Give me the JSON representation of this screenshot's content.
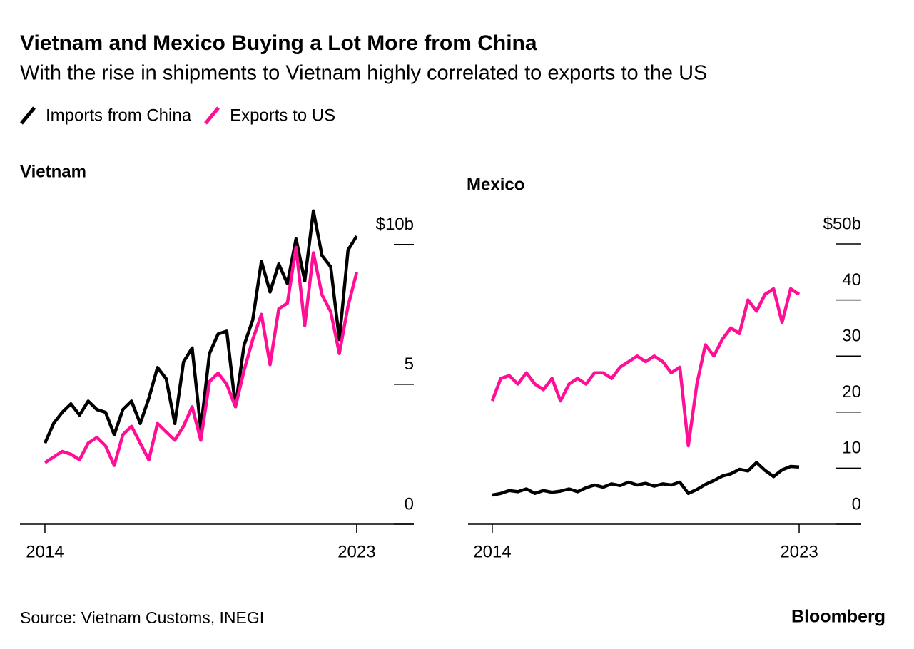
{
  "title": "Vietnam and Mexico Buying a Lot More from China",
  "subtitle": "With the rise in shipments to Vietnam highly correlated to exports to the US",
  "source": "Source: Vietnam Customs, INEGI",
  "brand": "Bloomberg",
  "chart_data": [
    {
      "type": "line",
      "title": "Vietnam",
      "x": [
        2014,
        2014.25,
        2014.5,
        2014.75,
        2015,
        2015.25,
        2015.5,
        2015.75,
        2016,
        2016.25,
        2016.5,
        2016.75,
        2017,
        2017.25,
        2017.5,
        2017.75,
        2018,
        2018.25,
        2018.5,
        2018.75,
        2019,
        2019.25,
        2019.5,
        2019.75,
        2020,
        2020.25,
        2020.5,
        2020.75,
        2021,
        2021.25,
        2021.5,
        2021.75,
        2022,
        2022.25,
        2022.5,
        2022.75,
        2023
      ],
      "series": [
        {
          "name": "Imports from China",
          "color": "#000000",
          "values": [
            2.9,
            3.6,
            4.0,
            4.3,
            3.9,
            4.4,
            4.1,
            4.0,
            3.2,
            4.1,
            4.4,
            3.6,
            4.5,
            5.6,
            5.2,
            3.6,
            5.8,
            6.3,
            3.4,
            6.1,
            6.8,
            6.9,
            4.2,
            6.4,
            7.3,
            9.4,
            8.3,
            9.3,
            8.6,
            10.2,
            8.7,
            11.2,
            9.6,
            9.2,
            6.6,
            9.8,
            10.3
          ]
        },
        {
          "name": "Exports to US",
          "color": "#ff0e96",
          "values": [
            2.2,
            2.4,
            2.6,
            2.5,
            2.3,
            2.9,
            3.1,
            2.8,
            2.1,
            3.2,
            3.5,
            2.9,
            2.3,
            3.6,
            3.3,
            3.0,
            3.5,
            4.2,
            3.0,
            5.1,
            5.4,
            5.0,
            4.2,
            5.5,
            6.6,
            7.5,
            5.7,
            7.7,
            7.9,
            9.9,
            7.1,
            9.7,
            8.2,
            7.6,
            6.1,
            7.8,
            9.0
          ]
        }
      ],
      "xlim": [
        2013.28,
        2024.65
      ],
      "xticks": [
        2014,
        2023
      ],
      "ylim": [
        0,
        11.6
      ],
      "yticks": [
        0,
        5,
        {
          "value": 10,
          "label": "$10b"
        }
      ]
    },
    {
      "type": "line",
      "title": "Mexico",
      "x": [
        2014,
        2014.25,
        2014.5,
        2014.75,
        2015,
        2015.25,
        2015.5,
        2015.75,
        2016,
        2016.25,
        2016.5,
        2016.75,
        2017,
        2017.25,
        2017.5,
        2017.75,
        2018,
        2018.25,
        2018.5,
        2018.75,
        2019,
        2019.25,
        2019.5,
        2019.75,
        2020,
        2020.25,
        2020.5,
        2020.75,
        2021,
        2021.25,
        2021.5,
        2021.75,
        2022,
        2022.25,
        2022.5,
        2022.75,
        2023
      ],
      "series": [
        {
          "name": "Imports from China",
          "color": "#000000",
          "values": [
            5.2,
            5.5,
            6.0,
            5.8,
            6.3,
            5.5,
            6.0,
            5.7,
            5.9,
            6.3,
            5.8,
            6.5,
            7.0,
            6.6,
            7.2,
            6.9,
            7.5,
            7.0,
            7.3,
            6.8,
            7.2,
            7.0,
            7.5,
            5.5,
            6.2,
            7.1,
            7.8,
            8.6,
            9.0,
            9.8,
            9.5,
            11.0,
            9.6,
            8.5,
            9.7,
            10.3,
            10.2
          ]
        },
        {
          "name": "Exports to US",
          "color": "#ff0e96",
          "values": [
            22,
            26,
            26.5,
            25,
            27,
            25,
            24,
            26,
            22,
            25,
            26,
            25,
            27,
            27,
            26,
            28,
            29,
            30,
            29,
            30,
            29,
            27,
            28,
            14,
            25,
            32,
            30,
            33,
            35,
            34,
            40,
            38,
            41,
            42,
            36,
            42,
            41
          ]
        }
      ],
      "xlim": [
        2013.29,
        2024.82
      ],
      "xticks": [
        2014,
        2023
      ],
      "ylim": [
        0,
        50
      ],
      "yticks": [
        0,
        10,
        20,
        30,
        40,
        {
          "value": 50,
          "label": "$50b"
        }
      ]
    }
  ]
}
